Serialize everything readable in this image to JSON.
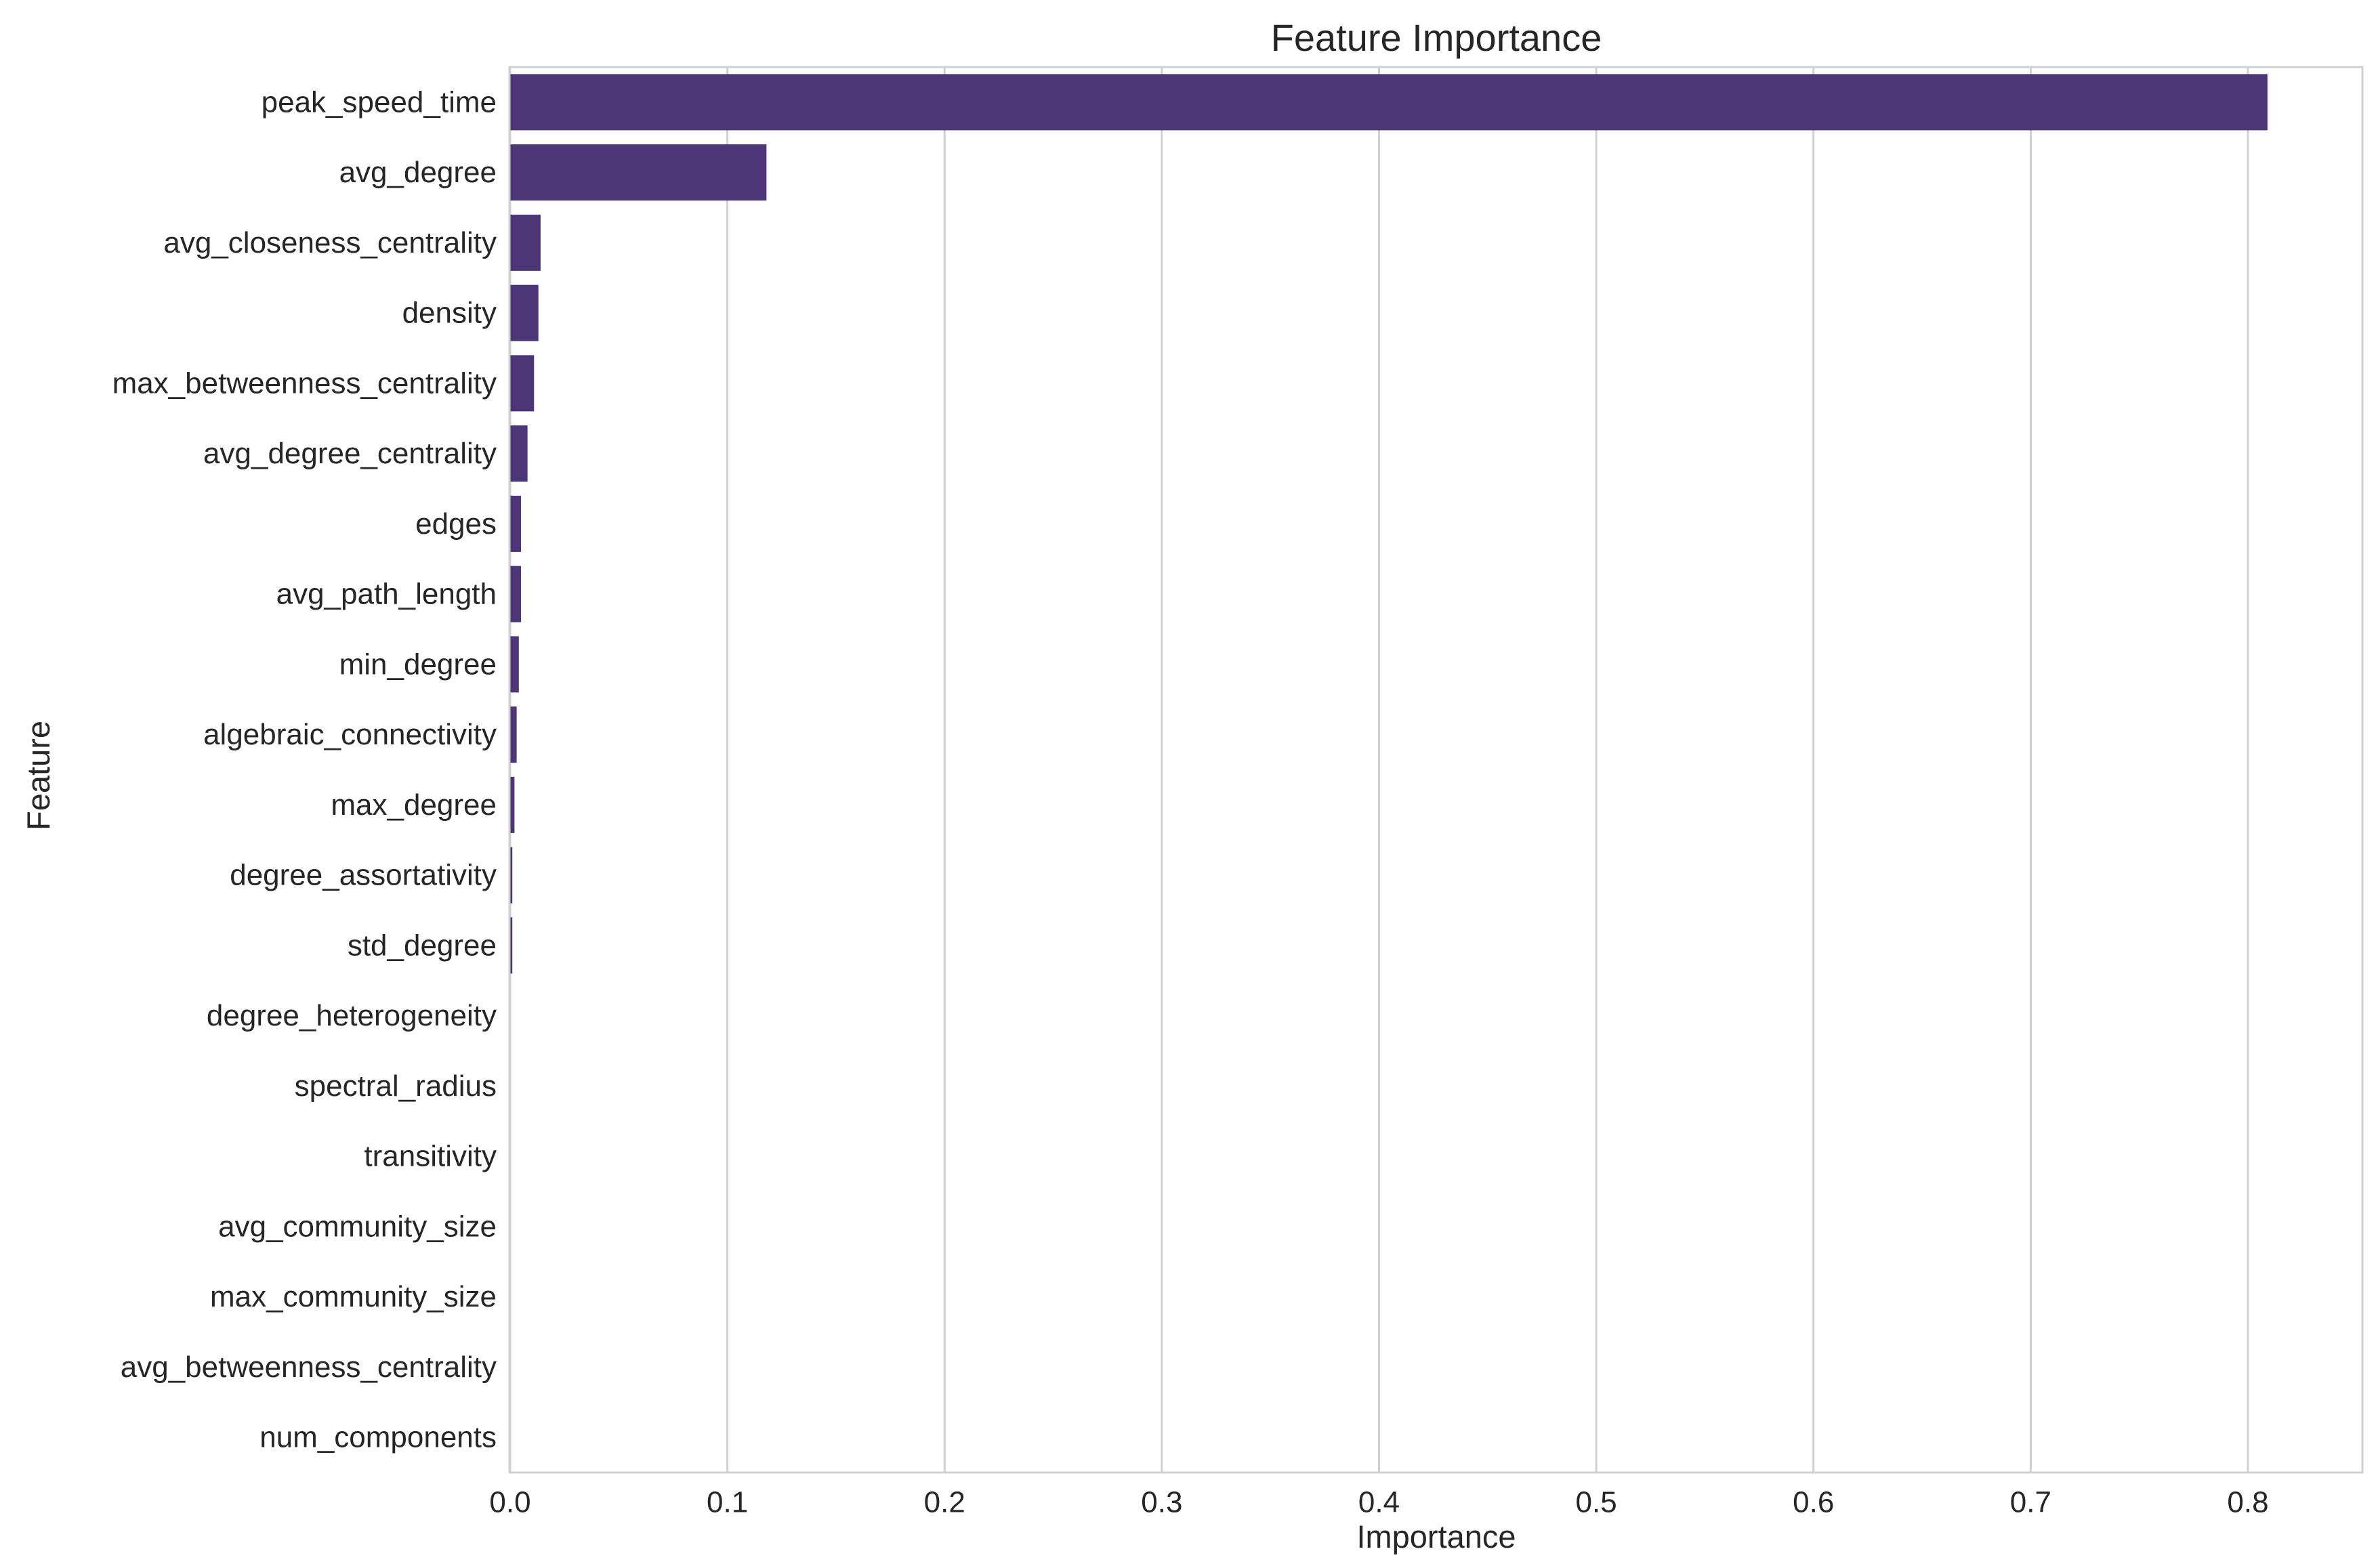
{
  "chart_data": {
    "type": "bar",
    "orientation": "horizontal",
    "title": "Feature Importance",
    "xlabel": "Importance",
    "ylabel": "Feature",
    "xlim": [
      0.0,
      0.85
    ],
    "xticks": [
      0.0,
      0.1,
      0.2,
      0.3,
      0.4,
      0.5,
      0.6,
      0.7,
      0.8
    ],
    "xtick_labels": [
      "0.0",
      "0.1",
      "0.2",
      "0.3",
      "0.4",
      "0.5",
      "0.6",
      "0.7",
      "0.8"
    ],
    "grid": true,
    "bar_color": "#4d3677",
    "categories": [
      "peak_speed_time",
      "avg_degree",
      "avg_closeness_centrality",
      "density",
      "max_betweenness_centrality",
      "avg_degree_centrality",
      "edges",
      "avg_path_length",
      "min_degree",
      "algebraic_connectivity",
      "max_degree",
      "degree_assortativity",
      "std_degree",
      "degree_heterogeneity",
      "spectral_radius",
      "transitivity",
      "avg_community_size",
      "max_community_size",
      "avg_betweenness_centrality",
      "num_components"
    ],
    "values": [
      0.809,
      0.118,
      0.014,
      0.013,
      0.011,
      0.008,
      0.005,
      0.005,
      0.004,
      0.003,
      0.002,
      0.001,
      0.001,
      0.0,
      0.0,
      0.0,
      0.0,
      0.0,
      0.0,
      0.0
    ]
  }
}
